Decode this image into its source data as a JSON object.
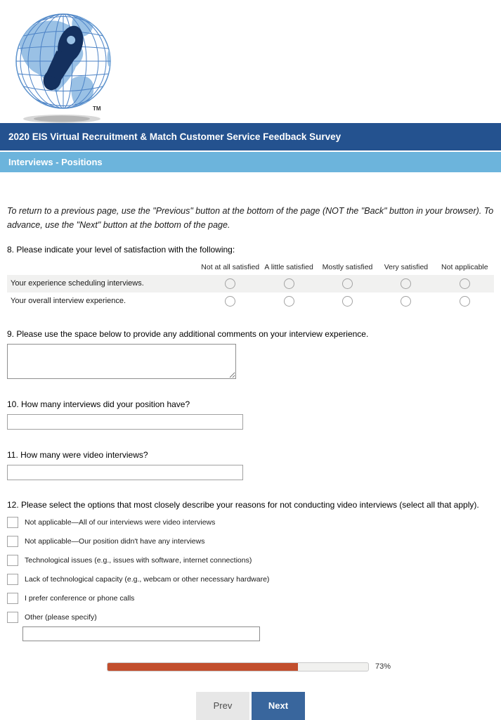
{
  "logo": {
    "tm_label": "TM"
  },
  "header": {
    "survey_title": "2020 EIS Virtual Recruitment & Match Customer Service Feedback Survey",
    "page_title": "Interviews - Positions",
    "title_bar_color": "#24528f",
    "page_bar_color": "#6cb4dc"
  },
  "instructions": "To return to a previous page, use the \"Previous\" button at the bottom of the page (NOT the \"Back\" button in your browser). To advance, use the \"Next\" button at the bottom of the page.",
  "questions": {
    "q8": {
      "label": "8. Please indicate your level of satisfaction with the following:",
      "columns": [
        "Not at all satisfied",
        "A little satisfied",
        "Mostly satisfied",
        "Very satisfied",
        "Not applicable"
      ],
      "rows": [
        {
          "label": "Your experience scheduling interviews."
        },
        {
          "label": "Your overall interview experience."
        }
      ]
    },
    "q9": {
      "label": "9. Please use the space below to provide any additional comments on your interview experience.",
      "value": ""
    },
    "q10": {
      "label": "10. How many interviews did your position have?",
      "value": ""
    },
    "q11": {
      "label": "11. How many were video interviews?",
      "value": ""
    },
    "q12": {
      "label": "12. Please select the options that most closely describe your reasons for not conducting video interviews (select all that apply).",
      "options": [
        "Not applicable—All of our interviews were video interviews",
        "Not applicable—Our position didn't have any interviews",
        "Technological issues (e.g., issues with software, internet connections)",
        "Lack of technological capacity (e.g., webcam or other necessary hardware)",
        "I prefer conference or phone calls",
        "Other (please specify)"
      ],
      "other_value": ""
    }
  },
  "progress": {
    "percent": 73,
    "label": "73%",
    "fill_color": "#c24e2d"
  },
  "buttons": {
    "prev": "Prev",
    "next": "Next"
  }
}
